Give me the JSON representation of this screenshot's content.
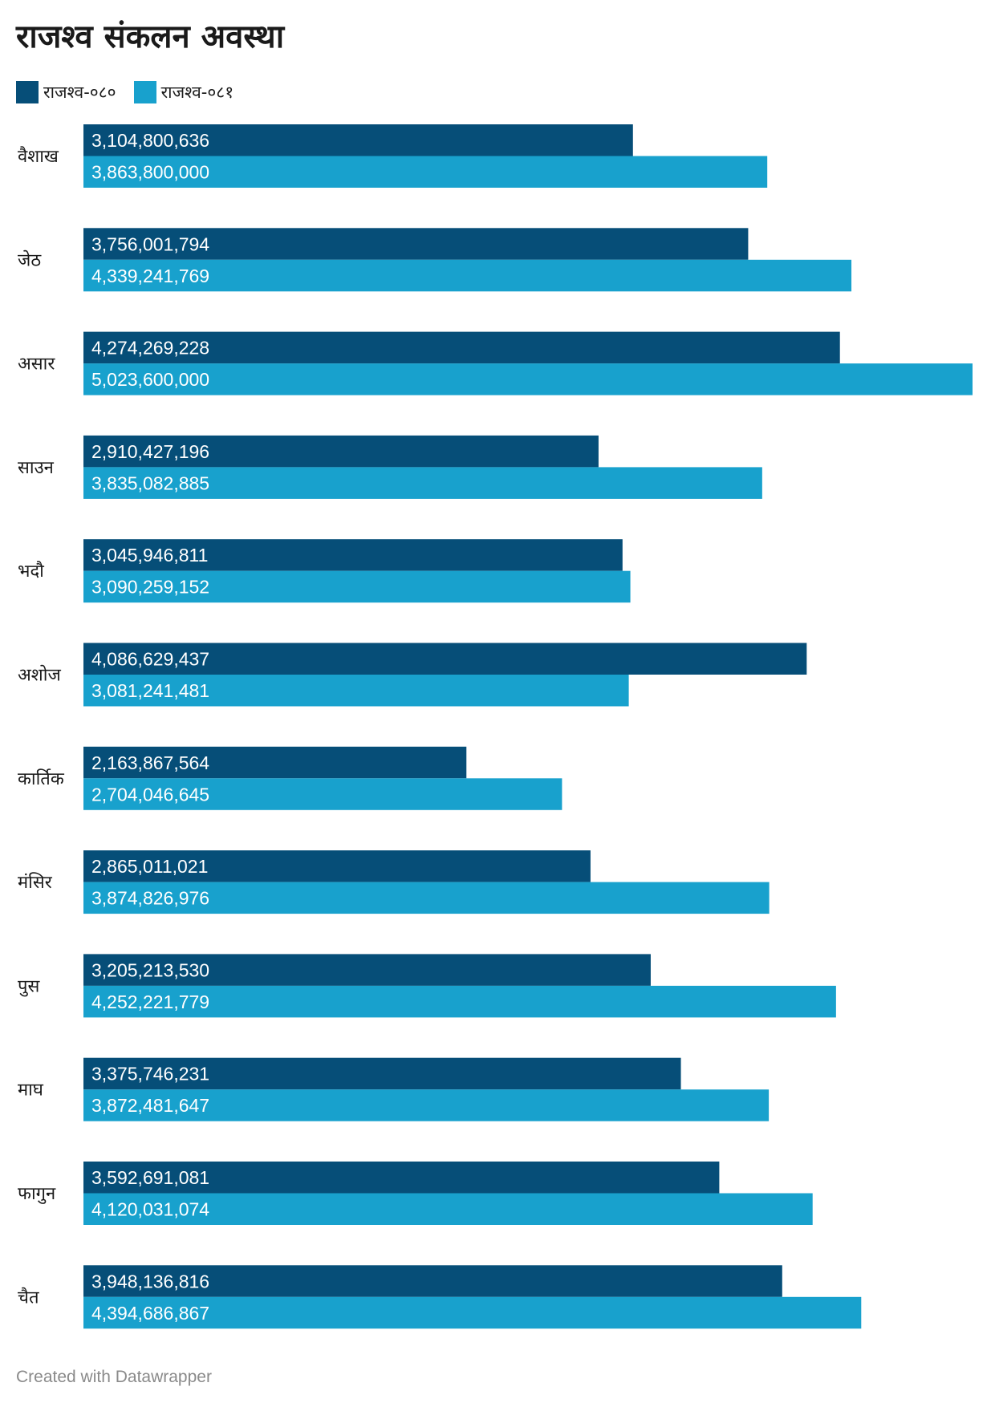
{
  "colors": {
    "series_080": "#064e78",
    "series_081": "#18a1cd"
  },
  "footer": "Created with Datawrapper",
  "chart_data": {
    "type": "bar",
    "orientation": "horizontal",
    "title": "राजश्व संकलन अवस्था",
    "legend": "top-left",
    "grid": false,
    "xlim": [
      0,
      5023600000
    ],
    "categories": [
      "वैशाख",
      "जेठ",
      "असार",
      "साउन",
      "भदौ",
      "अशोज",
      "कार्तिक",
      "मंसिर",
      "पुस",
      "माघ",
      "फागुन",
      "चैत"
    ],
    "series": [
      {
        "name": "राजश्व-०८०",
        "values": [
          3104800636,
          3756001794,
          4274269228,
          2910427196,
          3045946811,
          4086629437,
          2163867564,
          2865011021,
          3205213530,
          3375746231,
          3592691081,
          3948136816
        ],
        "labels": [
          "3,104,800,636",
          "3,756,001,794",
          "4,274,269,228",
          "2,910,427,196",
          "3,045,946,811",
          "4,086,629,437",
          "2,163,867,564",
          "2,865,011,021",
          "3,205,213,530",
          "3,375,746,231",
          "3,592,691,081",
          "3,948,136,816"
        ]
      },
      {
        "name": "राजश्व-०८१",
        "values": [
          3863800000,
          4339241769,
          5023600000,
          3835082885,
          3090259152,
          3081241481,
          2704046645,
          3874826976,
          4252221779,
          3872481647,
          4120031074,
          4394686867
        ],
        "labels": [
          "3,863,800,000",
          "4,339,241,769",
          "5,023,600,000",
          "3,835,082,885",
          "3,090,259,152",
          "3,081,241,481",
          "2,704,046,645",
          "3,874,826,976",
          "4,252,221,779",
          "3,872,481,647",
          "4,120,031,074",
          "4,394,686,867"
        ]
      }
    ]
  }
}
